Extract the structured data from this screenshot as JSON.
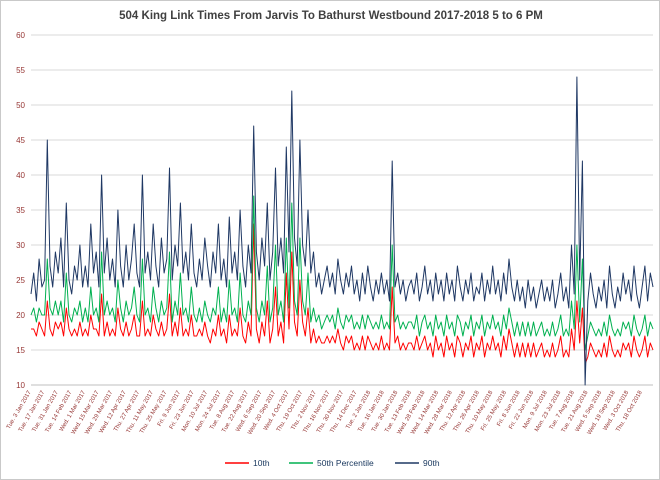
{
  "chart_data": {
    "type": "line",
    "title": "504 King Link Times From Jarvis To Bathurst Westbound 2017-2018 5 to 6 PM",
    "xlabel": "",
    "ylabel": "",
    "ylim": [
      10,
      60
    ],
    "ytick_step": 5,
    "grid": "horizontal",
    "legend_position": "bottom",
    "axis_label_color": "#963634",
    "title_color": "#404040",
    "tick_interval": 5,
    "x_tick_labels": [
      "Tue. 3 Jan 2017",
      "Tue. 17 Jan 2017",
      "Tue. 31 Jan 2017",
      "Tue. 14 Feb 2017",
      "Wed. 1 Mar 2017",
      "Wed. 15 Mar 2017",
      "Wed. 29 Mar 2017",
      "Wed. 12 Apr 2017",
      "Thu. 27 Apr 2017",
      "Thu. 11 May 2017",
      "Thu. 25 May 2017",
      "Fri. 9 Jun 2017",
      "Fri. 23 Jun 2017",
      "Mon. 10 Jul 2017",
      "Mon. 24 Jul 2017",
      "Tue. 8 Aug 2017",
      "Tue. 22 Aug 2017",
      "Wed. 6 Sep 2017",
      "Wed. 20 Sep 2017",
      "Wed. 4 Oct 2017",
      "Thu. 19 Oct 2017",
      "Thu. 2 Nov 2017",
      "Thu. 16 Nov 2017",
      "Thu. 30 Nov 2017",
      "Thu. 14 Dec 2017",
      "Tue. 2 Jan 2018",
      "Tue. 16 Jan 2018",
      "Tue. 30 Jan 2018",
      "Tue. 13 Feb 2018",
      "Wed. 28 Feb 2018",
      "Wed. 14 Mar 2018",
      "Wed. 28 Mar 2018",
      "Thu. 12 Apr 2018",
      "Thu. 26 Apr 2018",
      "Thu. 10 May 2018",
      "Fri. 25 May 2018",
      "Fri. 8 Jun 2018",
      "Fri. 22 Jun 2018",
      "Mon. 9 Jul 2018",
      "Mon. 23 Jul 2018",
      "Tue. 7 Aug 2018",
      "Tue. 21 Aug 2018",
      "Wed. 5 Sep 2018",
      "Wed. 19 Sep 2018",
      "Wed. 3 Oct 2018",
      "Thu. 18 Oct 2018"
    ],
    "series": [
      {
        "name": "10th",
        "color": "#ff0000",
        "values": [
          18,
          18,
          17,
          19,
          18,
          17,
          22,
          18,
          17,
          19,
          18,
          19,
          17,
          21,
          18,
          17,
          18,
          17,
          19,
          17,
          18,
          17,
          20,
          18,
          18,
          17,
          23,
          17,
          19,
          17,
          18,
          17,
          21,
          18,
          17,
          19,
          17,
          18,
          20,
          17,
          17,
          22,
          17,
          18,
          17,
          20,
          18,
          17,
          19,
          17,
          18,
          23,
          17,
          19,
          17,
          21,
          17,
          18,
          17,
          20,
          17,
          17,
          18,
          17,
          19,
          17,
          16,
          18,
          17,
          20,
          17,
          18,
          16,
          20,
          17,
          18,
          17,
          21,
          17,
          16,
          19,
          17,
          33,
          18,
          16,
          19,
          17,
          22,
          16,
          18,
          24,
          17,
          19,
          16,
          26,
          18,
          29,
          19,
          17,
          25,
          19,
          17,
          21,
          16,
          18,
          16,
          17,
          16,
          16,
          17,
          16,
          17,
          16,
          18,
          16,
          15,
          17,
          16,
          17,
          15,
          16,
          15,
          17,
          15,
          17,
          16,
          15,
          16,
          15,
          17,
          15,
          16,
          15,
          24,
          16,
          17,
          15,
          16,
          15,
          16,
          16,
          15,
          17,
          15,
          16,
          17,
          15,
          16,
          14,
          17,
          15,
          16,
          14,
          17,
          15,
          16,
          14,
          17,
          16,
          14,
          16,
          15,
          17,
          14,
          16,
          15,
          17,
          14,
          16,
          15,
          17,
          15,
          16,
          14,
          17,
          15,
          18,
          16,
          14,
          16,
          14,
          16,
          14,
          16,
          14,
          16,
          14,
          15,
          16,
          14,
          15,
          14,
          16,
          14,
          15,
          17,
          14,
          15,
          14,
          18,
          15,
          22,
          16,
          21,
          13,
          14,
          16,
          15,
          14,
          15,
          14,
          16,
          14,
          17,
          15,
          14,
          15,
          14,
          16,
          15,
          16,
          14,
          17,
          15,
          14,
          15,
          17,
          14,
          16,
          15
        ]
      },
      {
        "name": "50th Percentile",
        "color": "#00b050",
        "values": [
          20,
          21,
          19,
          21,
          20,
          20,
          28,
          21,
          20,
          22,
          20,
          22,
          19,
          26,
          20,
          19,
          21,
          20,
          22,
          19,
          21,
          19,
          24,
          20,
          21,
          19,
          29,
          20,
          22,
          20,
          21,
          19,
          25,
          21,
          19,
          22,
          20,
          21,
          24,
          20,
          19,
          28,
          20,
          21,
          19,
          24,
          21,
          19,
          22,
          20,
          21,
          29,
          19,
          22,
          20,
          26,
          20,
          21,
          19,
          24,
          20,
          19,
          21,
          19,
          22,
          20,
          19,
          21,
          20,
          24,
          19,
          21,
          19,
          25,
          20,
          21,
          19,
          26,
          20,
          19,
          22,
          20,
          37,
          21,
          19,
          22,
          20,
          27,
          19,
          21,
          30,
          20,
          22,
          19,
          31,
          21,
          36,
          22,
          20,
          31,
          22,
          20,
          26,
          19,
          21,
          19,
          20,
          18,
          19,
          20,
          19,
          20,
          18,
          21,
          19,
          18,
          20,
          19,
          20,
          18,
          19,
          18,
          20,
          18,
          20,
          19,
          18,
          19,
          18,
          20,
          18,
          19,
          18,
          30,
          19,
          20,
          18,
          19,
          18,
          19,
          19,
          18,
          20,
          17,
          19,
          20,
          18,
          19,
          17,
          20,
          18,
          19,
          17,
          20,
          18,
          19,
          17,
          20,
          19,
          17,
          19,
          18,
          20,
          17,
          19,
          18,
          20,
          17,
          19,
          18,
          20,
          18,
          19,
          17,
          20,
          18,
          21,
          19,
          17,
          19,
          17,
          19,
          17,
          19,
          17,
          19,
          17,
          18,
          19,
          17,
          18,
          17,
          19,
          17,
          18,
          20,
          17,
          18,
          17,
          22,
          18,
          30,
          19,
          28,
          15,
          17,
          19,
          18,
          17,
          18,
          17,
          19,
          17,
          20,
          18,
          17,
          18,
          17,
          19,
          18,
          19,
          17,
          20,
          18,
          17,
          18,
          20,
          17,
          19,
          18
        ]
      },
      {
        "name": "90th",
        "color": "#1f3864",
        "values": [
          23,
          26,
          22,
          28,
          24,
          25,
          45,
          27,
          24,
          29,
          26,
          31,
          24,
          36,
          25,
          23,
          27,
          25,
          30,
          24,
          27,
          24,
          33,
          26,
          29,
          24,
          40,
          26,
          31,
          25,
          28,
          24,
          35,
          27,
          24,
          30,
          25,
          28,
          33,
          26,
          24,
          40,
          26,
          29,
          25,
          33,
          27,
          24,
          31,
          26,
          28,
          41,
          25,
          30,
          27,
          36,
          26,
          29,
          25,
          33,
          26,
          24,
          28,
          25,
          31,
          27,
          24,
          29,
          26,
          33,
          25,
          28,
          24,
          34,
          26,
          29,
          25,
          35,
          27,
          24,
          30,
          26,
          47,
          29,
          25,
          31,
          27,
          36,
          25,
          29,
          41,
          27,
          31,
          26,
          44,
          29,
          52,
          31,
          27,
          45,
          30,
          27,
          35,
          26,
          29,
          24,
          26,
          23,
          25,
          27,
          24,
          26,
          23,
          28,
          25,
          23,
          26,
          24,
          27,
          23,
          25,
          22,
          26,
          23,
          27,
          24,
          22,
          25,
          23,
          26,
          23,
          25,
          22,
          42,
          24,
          26,
          23,
          25,
          22,
          24,
          25,
          23,
          26,
          22,
          24,
          27,
          23,
          25,
          22,
          26,
          23,
          25,
          22,
          26,
          23,
          25,
          22,
          27,
          24,
          22,
          25,
          23,
          26,
          22,
          24,
          23,
          26,
          22,
          25,
          23,
          27,
          23,
          25,
          22,
          26,
          23,
          28,
          24,
          22,
          25,
          22,
          24,
          21,
          25,
          22,
          24,
          21,
          23,
          25,
          22,
          24,
          22,
          25,
          21,
          23,
          26,
          22,
          24,
          21,
          30,
          23,
          54,
          25,
          42,
          10,
          22,
          26,
          23,
          21,
          24,
          22,
          25,
          21,
          27,
          23,
          21,
          24,
          22,
          26,
          23,
          25,
          22,
          27,
          23,
          21,
          24,
          27,
          22,
          26,
          24
        ]
      }
    ]
  }
}
